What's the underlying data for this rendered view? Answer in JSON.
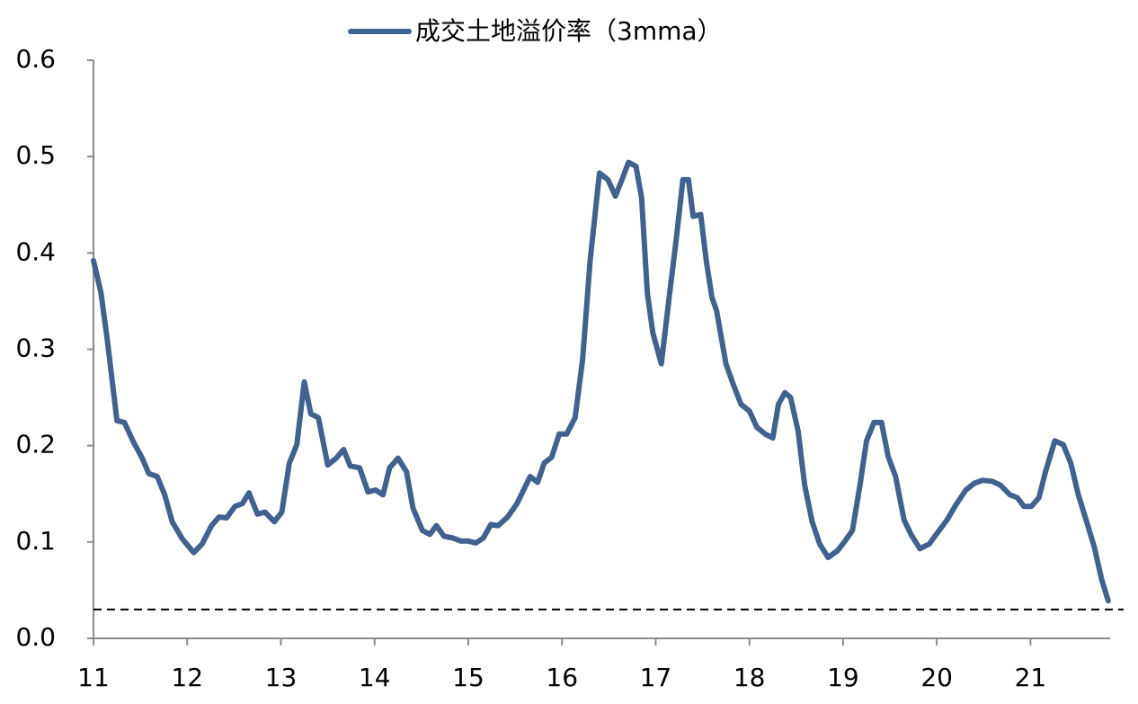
{
  "chart_data": {
    "type": "line",
    "x": [
      11.0,
      11.08,
      11.15,
      11.25,
      11.33,
      11.42,
      11.52,
      11.59,
      11.68,
      11.76,
      11.84,
      11.95,
      12.07,
      12.16,
      12.26,
      12.34,
      12.42,
      12.51,
      12.59,
      12.66,
      12.75,
      12.83,
      12.93,
      13.01,
      13.09,
      13.17,
      13.25,
      13.32,
      13.4,
      13.5,
      13.59,
      13.67,
      13.74,
      13.84,
      13.93,
      14.01,
      14.09,
      14.16,
      14.25,
      14.34,
      14.41,
      14.51,
      14.59,
      14.66,
      14.74,
      14.84,
      14.92,
      15.0,
      15.08,
      15.16,
      15.24,
      15.32,
      15.42,
      15.52,
      15.66,
      15.74,
      15.81,
      15.89,
      15.97,
      16.05,
      16.14,
      16.22,
      16.3,
      16.4,
      16.49,
      16.57,
      16.64,
      16.71,
      16.79,
      16.85,
      16.91,
      16.97,
      17.06,
      17.15,
      17.22,
      17.29,
      17.35,
      17.4,
      17.48,
      17.54,
      17.6,
      17.65,
      17.75,
      17.83,
      17.91,
      18.0,
      18.08,
      18.17,
      18.25,
      18.31,
      18.38,
      18.44,
      18.52,
      18.59,
      18.67,
      18.75,
      18.84,
      18.94,
      19.02,
      19.1,
      19.18,
      19.25,
      19.33,
      19.41,
      19.48,
      19.56,
      19.65,
      19.73,
      19.82,
      19.92,
      20.01,
      20.11,
      20.2,
      20.31,
      20.4,
      20.49,
      20.59,
      20.68,
      20.78,
      20.86,
      20.93,
      21.01,
      21.09,
      21.16,
      21.26,
      21.35,
      21.43,
      21.51,
      21.6,
      21.68,
      21.76,
      21.83
    ],
    "series": [
      {
        "name": "成交土地溢价率（3mma）",
        "color": "#41618f",
        "values": [
          0.392,
          0.359,
          0.308,
          0.226,
          0.224,
          0.205,
          0.187,
          0.171,
          0.168,
          0.149,
          0.121,
          0.103,
          0.089,
          0.098,
          0.117,
          0.126,
          0.125,
          0.137,
          0.14,
          0.151,
          0.129,
          0.131,
          0.121,
          0.131,
          0.182,
          0.201,
          0.266,
          0.233,
          0.229,
          0.18,
          0.187,
          0.196,
          0.179,
          0.177,
          0.152,
          0.154,
          0.149,
          0.177,
          0.187,
          0.173,
          0.135,
          0.112,
          0.108,
          0.117,
          0.106,
          0.104,
          0.101,
          0.101,
          0.099,
          0.104,
          0.118,
          0.117,
          0.126,
          0.14,
          0.168,
          0.162,
          0.182,
          0.188,
          0.212,
          0.212,
          0.229,
          0.289,
          0.392,
          0.483,
          0.476,
          0.459,
          0.476,
          0.494,
          0.49,
          0.457,
          0.359,
          0.317,
          0.285,
          0.359,
          0.415,
          0.476,
          0.476,
          0.438,
          0.44,
          0.392,
          0.354,
          0.34,
          0.285,
          0.263,
          0.243,
          0.236,
          0.219,
          0.212,
          0.208,
          0.243,
          0.255,
          0.25,
          0.215,
          0.159,
          0.121,
          0.098,
          0.084,
          0.091,
          0.101,
          0.112,
          0.159,
          0.205,
          0.224,
          0.224,
          0.189,
          0.168,
          0.123,
          0.107,
          0.093,
          0.098,
          0.11,
          0.123,
          0.138,
          0.154,
          0.161,
          0.164,
          0.163,
          0.159,
          0.149,
          0.146,
          0.137,
          0.137,
          0.146,
          0.173,
          0.205,
          0.201,
          0.182,
          0.149,
          0.121,
          0.095,
          0.061,
          0.039
        ]
      }
    ],
    "xlim": [
      11,
      21.85
    ],
    "xticks": [
      11,
      12,
      13,
      14,
      15,
      16,
      17,
      18,
      19,
      20,
      21
    ],
    "ylim": [
      0,
      0.6
    ],
    "yticks": [
      {
        "value": 0,
        "label": "0.0"
      },
      0.1,
      0.2,
      0.3,
      0.4,
      0.5,
      0.6
    ],
    "reference_line": 0.03,
    "grid": false,
    "legend": "top"
  }
}
